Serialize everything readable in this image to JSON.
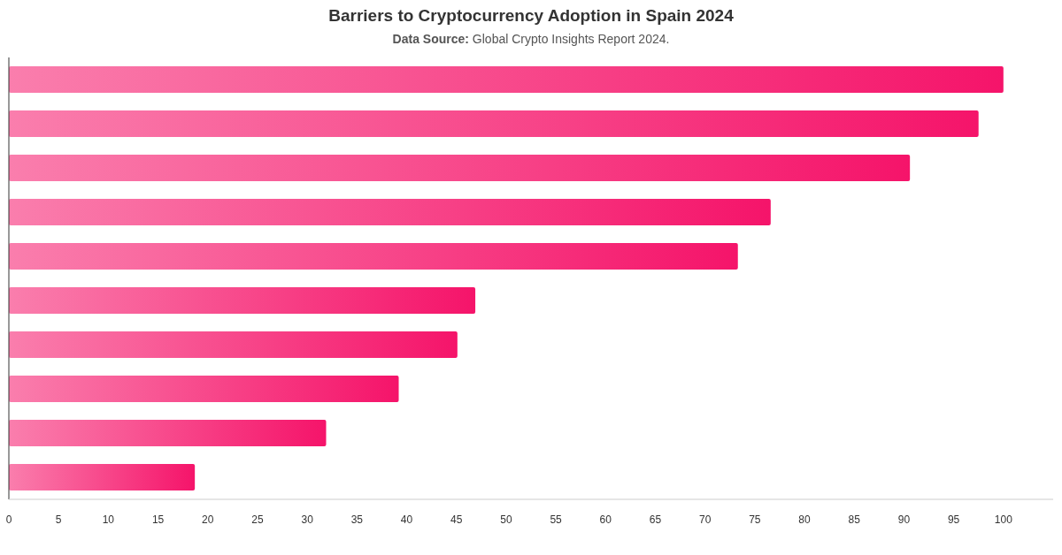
{
  "chart_data": {
    "type": "bar",
    "orientation": "horizontal",
    "title": "Barriers to Cryptocurrency Adoption in Spain 2024",
    "subtitle": "Data Source: Global Crypto Insights Report 2024.",
    "categories": [
      null,
      null,
      null,
      null,
      null,
      null,
      null,
      null,
      null,
      null
    ],
    "values": [
      100,
      97.5,
      90.6,
      76.6,
      73.3,
      46.9,
      45.1,
      39.2,
      31.9,
      18.7
    ],
    "color": "#f5146a",
    "xlim": [
      0,
      105
    ],
    "xticks": [
      0,
      5,
      10,
      15,
      20,
      25,
      30,
      35,
      40,
      45,
      50,
      55,
      60,
      65,
      70,
      75,
      80,
      85,
      90,
      95,
      100
    ]
  }
}
